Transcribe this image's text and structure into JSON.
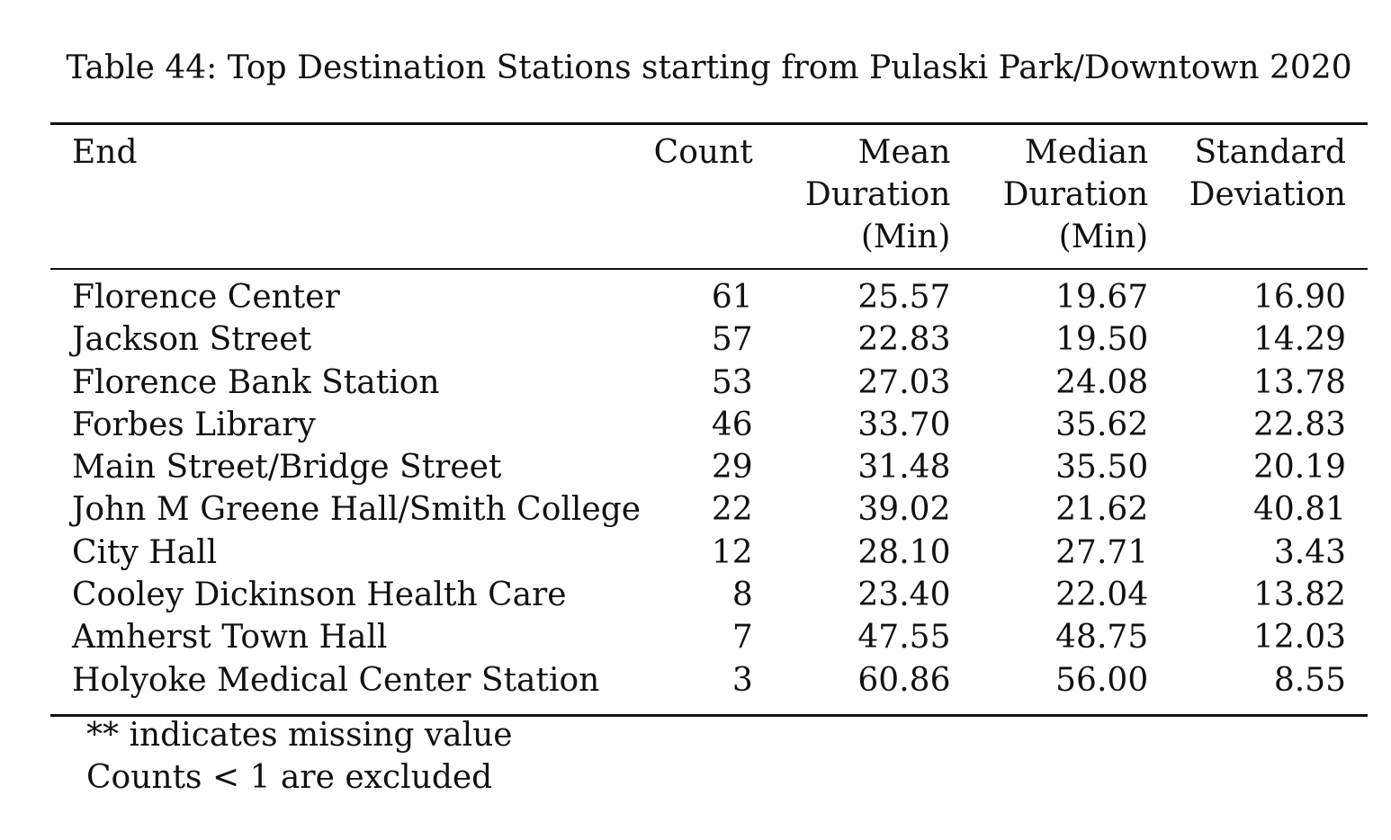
{
  "caption": "Table 44: Top Destination Stations starting from Pulaski Park/Downtown 2020",
  "columns": [
    {
      "lines": [
        "End"
      ]
    },
    {
      "lines": [
        "Count"
      ]
    },
    {
      "lines": [
        "Mean",
        "Duration",
        "(Min)"
      ]
    },
    {
      "lines": [
        "Median",
        "Duration",
        "(Min)"
      ]
    },
    {
      "lines": [
        "Standard",
        "Deviation"
      ]
    }
  ],
  "rows": [
    [
      "Florence Center",
      "61",
      "25.57",
      "19.67",
      "16.90"
    ],
    [
      "Jackson Street",
      "57",
      "22.83",
      "19.50",
      "14.29"
    ],
    [
      "Florence Bank Station",
      "53",
      "27.03",
      "24.08",
      "13.78"
    ],
    [
      "Forbes Library",
      "46",
      "33.70",
      "35.62",
      "22.83"
    ],
    [
      "Main Street/Bridge Street",
      "29",
      "31.48",
      "35.50",
      "20.19"
    ],
    [
      "John M Greene Hall/Smith College",
      "22",
      "39.02",
      "21.62",
      "40.81"
    ],
    [
      "City Hall",
      "12",
      "28.10",
      "27.71",
      "3.43"
    ],
    [
      "Cooley Dickinson Health Care",
      "8",
      "23.40",
      "22.04",
      "13.82"
    ],
    [
      "Amherst Town Hall",
      "7",
      "47.55",
      "48.75",
      "12.03"
    ],
    [
      "Holyoke Medical Center Station",
      "3",
      "60.86",
      "56.00",
      "8.55"
    ]
  ],
  "notes": [
    "** indicates missing value",
    "Counts < 1 are excluded"
  ]
}
